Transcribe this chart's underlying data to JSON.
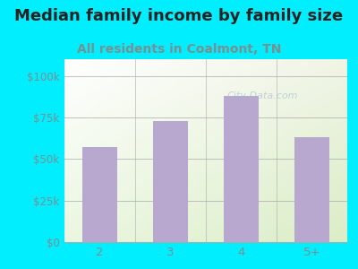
{
  "title": "Median family income by family size",
  "subtitle": "All residents in Coalmont, TN",
  "categories": [
    "2",
    "3",
    "4",
    "5+"
  ],
  "values": [
    57000,
    73000,
    88000,
    63000
  ],
  "bar_color": "#b8a8d0",
  "title_fontsize": 13,
  "subtitle_fontsize": 10,
  "subtitle_color": "#7a9090",
  "title_color": "#222222",
  "tick_label_color": "#7a9090",
  "background_outer": "#00eeff",
  "ylim": [
    0,
    110000
  ],
  "yticks": [
    0,
    25000,
    50000,
    75000,
    100000
  ],
  "ytick_labels": [
    "$0",
    "$25k",
    "$50k",
    "$75k",
    "$100k"
  ],
  "watermark": "City-Data.com"
}
